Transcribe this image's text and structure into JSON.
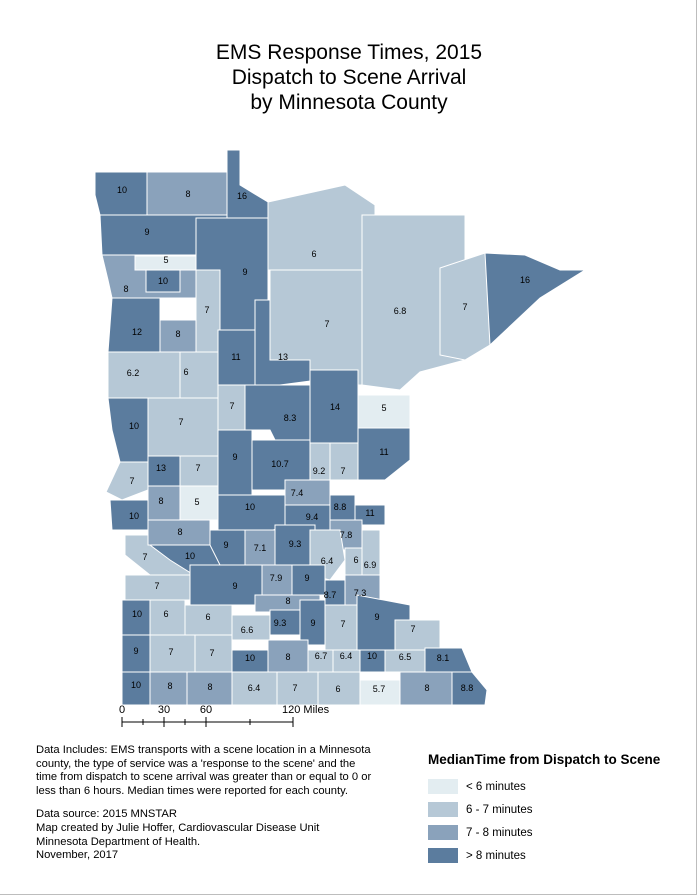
{
  "title": {
    "line1": "EMS Response Times, 2015",
    "line2": "Dispatch to Scene Arrival",
    "line3": "by Minnesota County"
  },
  "map": {
    "state": "Minnesota",
    "county_labels": [
      "10",
      "8",
      "16",
      "9",
      "5",
      "9",
      "8",
      "10",
      "6",
      "16",
      "7",
      "12",
      "8",
      "7",
      "6.8",
      "6.2",
      "6",
      "11",
      "13",
      "7",
      "5",
      "10",
      "7",
      "7",
      "8.3",
      "14",
      "9",
      "10.7",
      "11",
      "7",
      "13",
      "7",
      "9.2",
      "7",
      "5",
      "7.4",
      "10",
      "8",
      "8.8",
      "10",
      "9.4",
      "11",
      "8",
      "7.8",
      "9",
      "7.1",
      "9.3",
      "7",
      "10",
      "6.4",
      "6",
      "6.9",
      "7",
      "9",
      "7.9",
      "9",
      "8",
      "8.7",
      "7.3",
      "10",
      "6",
      "6",
      "6.6",
      "9.3",
      "9",
      "7",
      "9",
      "7",
      "9",
      "7",
      "7",
      "10",
      "8",
      "6.7",
      "6.4",
      "10",
      "6.5",
      "8.1",
      "10",
      "8",
      "8",
      "6.4",
      "7",
      "6",
      "5.7",
      "8",
      "8.8"
    ]
  },
  "scale_bar": {
    "ticks": [
      "0",
      "30",
      "60",
      "120 Miles"
    ]
  },
  "notes": {
    "paragraph1": "Data Includes: EMS transports with a scene location in a Minnesota county,  the type of service was a 'response to the scene' and the time from dispatch to scene arrival was greater than or equal to 0 or less than 6 hours.  Median times were reported for each county.",
    "source_line1": "Data source:  2015 MNSTAR",
    "source_line2": "Map created by Julie Hoffer, Cardiovascular Disease Unit",
    "source_line3": "Minnesota Department of Health.",
    "source_line4": "November, 2017"
  },
  "legend": {
    "title": "MedianTime from Dispatch to Scene",
    "items": [
      {
        "label": "< 6 minutes",
        "color": "#e3edf1"
      },
      {
        "label": "6 - 7 minutes",
        "color": "#b6c8d6"
      },
      {
        "label": "7 - 8 minutes",
        "color": "#8aa2bb"
      },
      {
        "label": "> 8 minutes",
        "color": "#5b7c9e"
      }
    ]
  }
}
